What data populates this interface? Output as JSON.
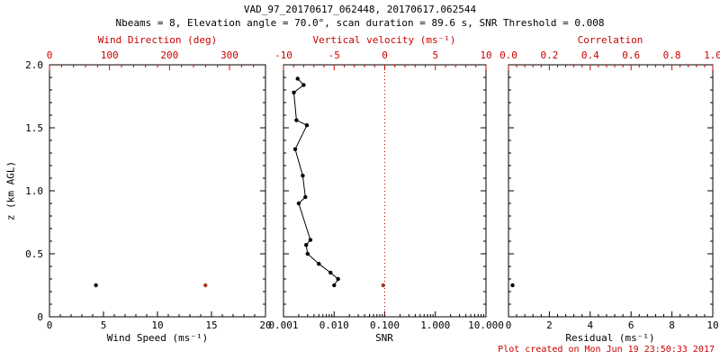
{
  "header": {
    "title": "VAD_97_20170617_062448, 20170617.062544",
    "subtitle": "Nbeams = 8, Elevation angle = 70.0°, scan duration = 89.6 s, SNR Threshold = 0.008"
  },
  "footer": {
    "created": "Plot created on Mon Jun 19 23:50:33 2017"
  },
  "colors": {
    "axis_black": "#000000",
    "axis_red": "#cc0000",
    "marker_red": "#a23b22",
    "background": "#ffffff"
  },
  "yaxis": {
    "label": "z (km AGL)",
    "lim": [
      0,
      2
    ],
    "ticks": [
      0,
      0.5,
      1,
      1.5,
      2
    ],
    "tick_labels": [
      "0",
      "0.5",
      "1.0",
      "1.5",
      "2.0"
    ]
  },
  "chart_data": [
    {
      "type": "scatter",
      "name": "wind",
      "xlabel": "Wind Speed (ms⁻¹)",
      "bottom_axis": {
        "scale": "linear",
        "lim": [
          0,
          20
        ],
        "ticks": [
          0,
          5,
          10,
          15,
          20
        ],
        "tick_labels": [
          "0",
          "5",
          "10",
          "15",
          "20"
        ]
      },
      "top_axis": {
        "label": "Wind Direction (deg)",
        "scale": "linear",
        "lim": [
          0,
          360
        ],
        "ticks": [
          0,
          100,
          200,
          300
        ],
        "tick_labels": [
          "0",
          "100",
          "200",
          "300"
        ]
      },
      "series": [
        {
          "name": "wind-speed",
          "axis": "bottom",
          "color": "#000000",
          "line": false,
          "points": [
            [
              4.3,
              0.25
            ]
          ]
        },
        {
          "name": "wind-direction",
          "axis": "top",
          "color": "#a23b22",
          "line": false,
          "points": [
            [
              260,
              0.25
            ]
          ]
        }
      ]
    },
    {
      "type": "scatter",
      "name": "snr",
      "xlabel": "SNR",
      "bottom_axis": {
        "scale": "log",
        "lim": [
          0.001,
          10
        ],
        "ticks": [
          0.001,
          0.01,
          0.1,
          1,
          10
        ],
        "tick_labels": [
          "0.001",
          "0.010",
          "0.100",
          "1.000",
          "10.000"
        ]
      },
      "top_axis": {
        "label": "Vertical velocity (ms⁻¹)",
        "scale": "linear",
        "lim": [
          -10,
          10
        ],
        "ticks": [
          -10,
          -5,
          0,
          5,
          10
        ],
        "tick_labels": [
          "-10",
          "-5",
          "0",
          "5",
          "10"
        ]
      },
      "refline": {
        "axis": "top",
        "value": 0
      },
      "series": [
        {
          "name": "snr-profile",
          "axis": "bottom",
          "color": "#000000",
          "line": true,
          "points": [
            [
              0.01,
              0.25
            ],
            [
              0.012,
              0.3
            ],
            [
              0.0085,
              0.35
            ],
            [
              0.005,
              0.42
            ],
            [
              0.003,
              0.5
            ],
            [
              0.0028,
              0.57
            ],
            [
              0.0034,
              0.61
            ],
            [
              0.002,
              0.9
            ],
            [
              0.0027,
              0.95
            ],
            [
              0.0024,
              1.12
            ],
            [
              0.0017,
              1.33
            ],
            [
              0.0029,
              1.52
            ],
            [
              0.0018,
              1.56
            ],
            [
              0.0016,
              1.78
            ],
            [
              0.0025,
              1.84
            ],
            [
              0.0019,
              1.89
            ]
          ]
        },
        {
          "name": "vertical-velocity",
          "axis": "top",
          "color": "#a23b22",
          "line": false,
          "points": [
            [
              -0.15,
              0.25
            ]
          ]
        }
      ]
    },
    {
      "type": "scatter",
      "name": "residual",
      "xlabel": "Residual (ms⁻¹)",
      "bottom_axis": {
        "scale": "linear",
        "lim": [
          0,
          10
        ],
        "ticks": [
          0,
          2,
          4,
          6,
          8,
          10
        ],
        "tick_labels": [
          "0",
          "2",
          "4",
          "6",
          "8",
          "10"
        ]
      },
      "top_axis": {
        "label": "Correlation",
        "scale": "linear",
        "lim": [
          0,
          1
        ],
        "ticks": [
          0,
          0.2,
          0.4,
          0.6,
          0.8,
          1
        ],
        "tick_labels": [
          "0.0",
          "0.2",
          "0.4",
          "0.6",
          "0.8",
          "1.0"
        ]
      },
      "series": [
        {
          "name": "residual",
          "axis": "bottom",
          "color": "#000000",
          "line": false,
          "points": [
            [
              0.2,
              0.25
            ]
          ]
        }
      ]
    }
  ]
}
